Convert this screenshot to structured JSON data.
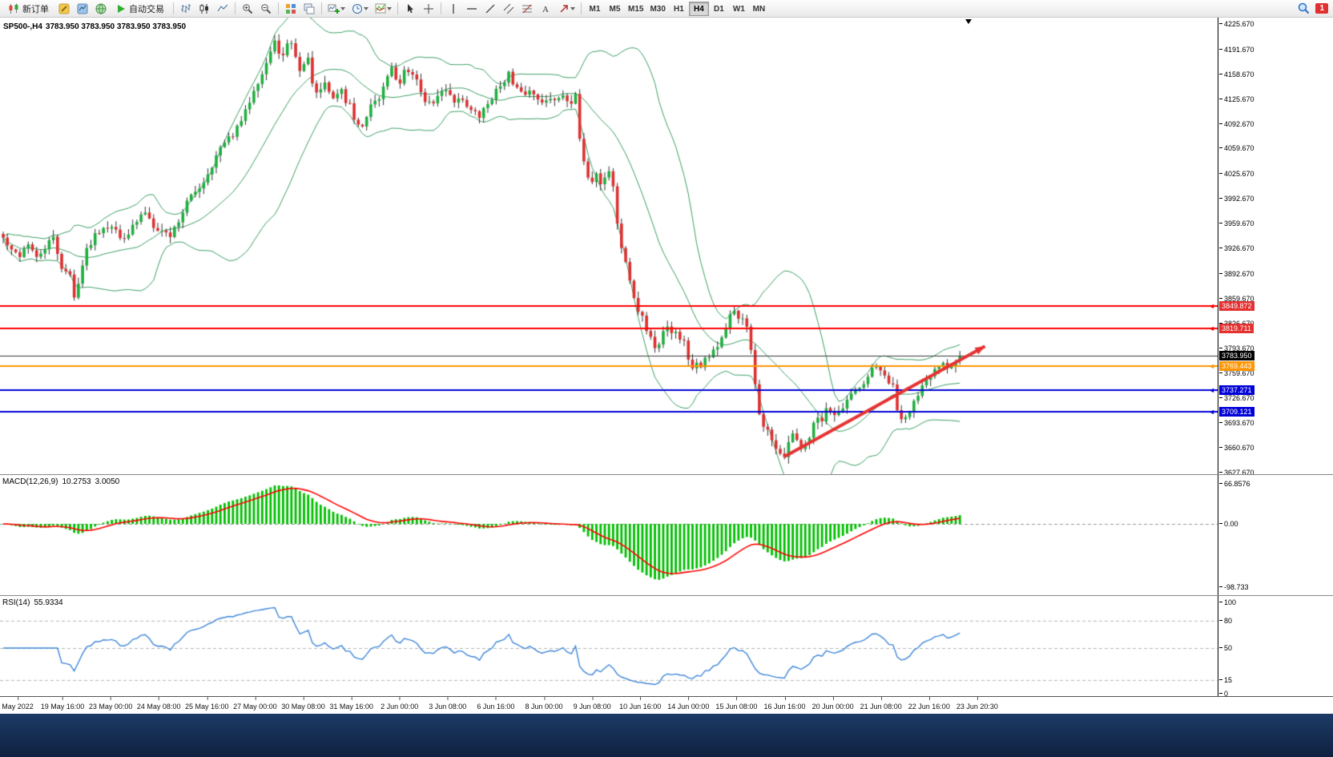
{
  "toolbar": {
    "new_order_label": "新订单",
    "autotrade_label": "自动交易",
    "timeframes": [
      "M1",
      "M5",
      "M15",
      "M30",
      "H1",
      "H4",
      "D1",
      "W1",
      "MN"
    ],
    "active_timeframe": "H4",
    "notification_count": "1"
  },
  "chart": {
    "symbol_label": "SP500-,H4",
    "ohlc_label": "3783.950 3783.950 3783.950 3783.950"
  },
  "chart_data": {
    "type": "candlestick",
    "symbol": "SP500-",
    "timeframe": "H4",
    "current_price": 3783.95,
    "candle_count": 230,
    "y_axis": {
      "ticks": [
        4225.67,
        4191.67,
        4158.67,
        4125.67,
        4092.67,
        4059.67,
        4025.67,
        3992.67,
        3959.67,
        3926.67,
        3892.67,
        3859.67,
        3826.67,
        3793.67,
        3759.67,
        3726.67,
        3693.67,
        3660.67,
        3627.67
      ]
    },
    "x_axis_labels": [
      "May 2022",
      "19 May 16:00",
      "23 May 00:00",
      "24 May 08:00",
      "25 May 16:00",
      "27 May 00:00",
      "30 May 08:00",
      "31 May 16:00",
      "2 Jun 00:00",
      "3 Jun 08:00",
      "6 Jun 16:00",
      "8 Jun 00:00",
      "9 Jun 08:00",
      "10 Jun 16:00",
      "14 Jun 00:00",
      "15 Jun 08:00",
      "16 Jun 16:00",
      "20 Jun 00:00",
      "21 Jun 08:00",
      "22 Jun 16:00",
      "23 Jun 20:30"
    ],
    "price_path_keypoints": [
      [
        0,
        3940
      ],
      [
        2,
        3922
      ],
      [
        4,
        3918
      ],
      [
        6,
        3934
      ],
      [
        8,
        3912
      ],
      [
        10,
        3928
      ],
      [
        12,
        3940
      ],
      [
        14,
        3902
      ],
      [
        16,
        3890
      ],
      [
        17,
        3860
      ],
      [
        18,
        3884
      ],
      [
        20,
        3924
      ],
      [
        22,
        3946
      ],
      [
        24,
        3956
      ],
      [
        26,
        3958
      ],
      [
        28,
        3940
      ],
      [
        30,
        3948
      ],
      [
        32,
        3962
      ],
      [
        34,
        3976
      ],
      [
        36,
        3958
      ],
      [
        38,
        3950
      ],
      [
        40,
        3944
      ],
      [
        42,
        3964
      ],
      [
        44,
        3988
      ],
      [
        46,
        4002
      ],
      [
        48,
        4016
      ],
      [
        50,
        4038
      ],
      [
        52,
        4060
      ],
      [
        54,
        4072
      ],
      [
        56,
        4086
      ],
      [
        58,
        4108
      ],
      [
        60,
        4140
      ],
      [
        62,
        4160
      ],
      [
        64,
        4188
      ],
      [
        65,
        4200
      ],
      [
        66,
        4190
      ],
      [
        67,
        4182
      ],
      [
        68,
        4196
      ],
      [
        69,
        4202
      ],
      [
        70,
        4180
      ],
      [
        71,
        4166
      ],
      [
        72,
        4172
      ],
      [
        73,
        4178
      ],
      [
        74,
        4150
      ],
      [
        75,
        4130
      ],
      [
        76,
        4138
      ],
      [
        77,
        4144
      ],
      [
        78,
        4136
      ],
      [
        79,
        4126
      ],
      [
        80,
        4134
      ],
      [
        81,
        4138
      ],
      [
        82,
        4122
      ],
      [
        83,
        4118
      ],
      [
        84,
        4100
      ],
      [
        85,
        4092
      ],
      [
        86,
        4086
      ],
      [
        88,
        4114
      ],
      [
        90,
        4126
      ],
      [
        92,
        4158
      ],
      [
        93,
        4172
      ],
      [
        94,
        4150
      ],
      [
        95,
        4148
      ],
      [
        96,
        4162
      ],
      [
        97,
        4158
      ],
      [
        98,
        4162
      ],
      [
        99,
        4152
      ],
      [
        100,
        4132
      ],
      [
        102,
        4118
      ],
      [
        104,
        4128
      ],
      [
        106,
        4140
      ],
      [
        108,
        4124
      ],
      [
        110,
        4126
      ],
      [
        112,
        4110
      ],
      [
        114,
        4102
      ],
      [
        116,
        4120
      ],
      [
        118,
        4136
      ],
      [
        120,
        4152
      ],
      [
        121,
        4160
      ],
      [
        122,
        4144
      ],
      [
        124,
        4132
      ],
      [
        126,
        4136
      ],
      [
        128,
        4128
      ],
      [
        130,
        4122
      ],
      [
        132,
        4126
      ],
      [
        134,
        4132
      ],
      [
        136,
        4122
      ],
      [
        137,
        4128
      ],
      [
        138,
        4072
      ],
      [
        139,
        4038
      ],
      [
        140,
        4024
      ],
      [
        141,
        4018
      ],
      [
        142,
        4026
      ],
      [
        143,
        4014
      ],
      [
        144,
        4022
      ],
      [
        145,
        4030
      ],
      [
        146,
        4010
      ],
      [
        147,
        3958
      ],
      [
        148,
        3928
      ],
      [
        149,
        3910
      ],
      [
        150,
        3880
      ],
      [
        151,
        3862
      ],
      [
        152,
        3842
      ],
      [
        153,
        3836
      ],
      [
        154,
        3816
      ],
      [
        155,
        3808
      ],
      [
        156,
        3796
      ],
      [
        157,
        3800
      ],
      [
        158,
        3818
      ],
      [
        159,
        3824
      ],
      [
        160,
        3812
      ],
      [
        161,
        3818
      ],
      [
        162,
        3808
      ],
      [
        163,
        3802
      ],
      [
        164,
        3780
      ],
      [
        165,
        3770
      ],
      [
        166,
        3776
      ],
      [
        167,
        3772
      ],
      [
        168,
        3780
      ],
      [
        169,
        3784
      ],
      [
        170,
        3792
      ],
      [
        171,
        3796
      ],
      [
        172,
        3806
      ],
      [
        173,
        3816
      ],
      [
        174,
        3836
      ],
      [
        175,
        3844
      ],
      [
        176,
        3836
      ],
      [
        177,
        3830
      ],
      [
        178,
        3822
      ],
      [
        179,
        3788
      ],
      [
        180,
        3742
      ],
      [
        181,
        3706
      ],
      [
        182,
        3692
      ],
      [
        183,
        3684
      ],
      [
        184,
        3668
      ],
      [
        185,
        3662
      ],
      [
        186,
        3654
      ],
      [
        187,
        3648
      ],
      [
        188,
        3664
      ],
      [
        189,
        3680
      ],
      [
        190,
        3668
      ],
      [
        191,
        3656
      ],
      [
        192,
        3664
      ],
      [
        193,
        3678
      ],
      [
        194,
        3698
      ],
      [
        195,
        3704
      ],
      [
        196,
        3696
      ],
      [
        197,
        3712
      ],
      [
        198,
        3706
      ],
      [
        199,
        3700
      ],
      [
        200,
        3706
      ],
      [
        201,
        3712
      ],
      [
        202,
        3722
      ],
      [
        203,
        3730
      ],
      [
        204,
        3738
      ],
      [
        205,
        3742
      ],
      [
        206,
        3746
      ],
      [
        207,
        3752
      ],
      [
        208,
        3766
      ],
      [
        209,
        3770
      ],
      [
        210,
        3760
      ],
      [
        211,
        3756
      ],
      [
        212,
        3748
      ],
      [
        213,
        3742
      ],
      [
        214,
        3714
      ],
      [
        215,
        3700
      ],
      [
        216,
        3706
      ],
      [
        217,
        3712
      ],
      [
        218,
        3722
      ],
      [
        219,
        3728
      ],
      [
        220,
        3740
      ],
      [
        221,
        3748
      ],
      [
        222,
        3756
      ],
      [
        223,
        3764
      ],
      [
        224,
        3772
      ],
      [
        225,
        3776
      ],
      [
        226,
        3770
      ],
      [
        227,
        3774
      ],
      [
        228,
        3778
      ],
      [
        229,
        3784
      ]
    ],
    "horizontal_lines": [
      {
        "price": 3849.872,
        "color": "#FF0000",
        "tag_bg": "#E53030",
        "width": 2,
        "marker": true
      },
      {
        "price": 3819.711,
        "color": "#FF0000",
        "tag_bg": "#E53030",
        "width": 2,
        "marker": true
      },
      {
        "price": 3783.95,
        "color": "#3A3A3A",
        "tag_bg": "#000000",
        "width": 1,
        "marker": false
      },
      {
        "price": 3769.443,
        "color": "#FF9500",
        "tag_bg": "#FF9500",
        "width": 2,
        "marker": true
      },
      {
        "price": 3737.271,
        "color": "#0000D8",
        "tag_bg": "#0000D8",
        "width": 2,
        "marker": true
      },
      {
        "price": 3709.121,
        "color": "#0000D8",
        "tag_bg": "#0000D8",
        "width": 2,
        "marker": true
      }
    ],
    "trend_arrow": {
      "i1": 187,
      "price1": 3649,
      "i2": 235,
      "price2": 3796,
      "color": "#E63232",
      "width": 4
    },
    "bollinger": {
      "period": 20,
      "deviation": 2,
      "color": "#3C9E63"
    },
    "candle_colors": {
      "bull": "#1FAF3F",
      "bear": "#DE3030",
      "wick": "#333333"
    },
    "macd": {
      "label": "MACD(12,26,9)",
      "value_line1": "10.2753",
      "value_line2": "3.0050",
      "fast": 12,
      "slow": 26,
      "signal": 9,
      "axis_labels": [
        "66.8576",
        "0.00",
        "-98.733"
      ],
      "histogram_color": "#00BE00",
      "signal_color": "#FF0000"
    },
    "rsi": {
      "label": "RSI(14)",
      "value": "55.9334",
      "period": 14,
      "axis_values": [
        100,
        80,
        50,
        15,
        0
      ],
      "levels": [
        80,
        50,
        15
      ],
      "line_color": "#3E86D8"
    }
  }
}
